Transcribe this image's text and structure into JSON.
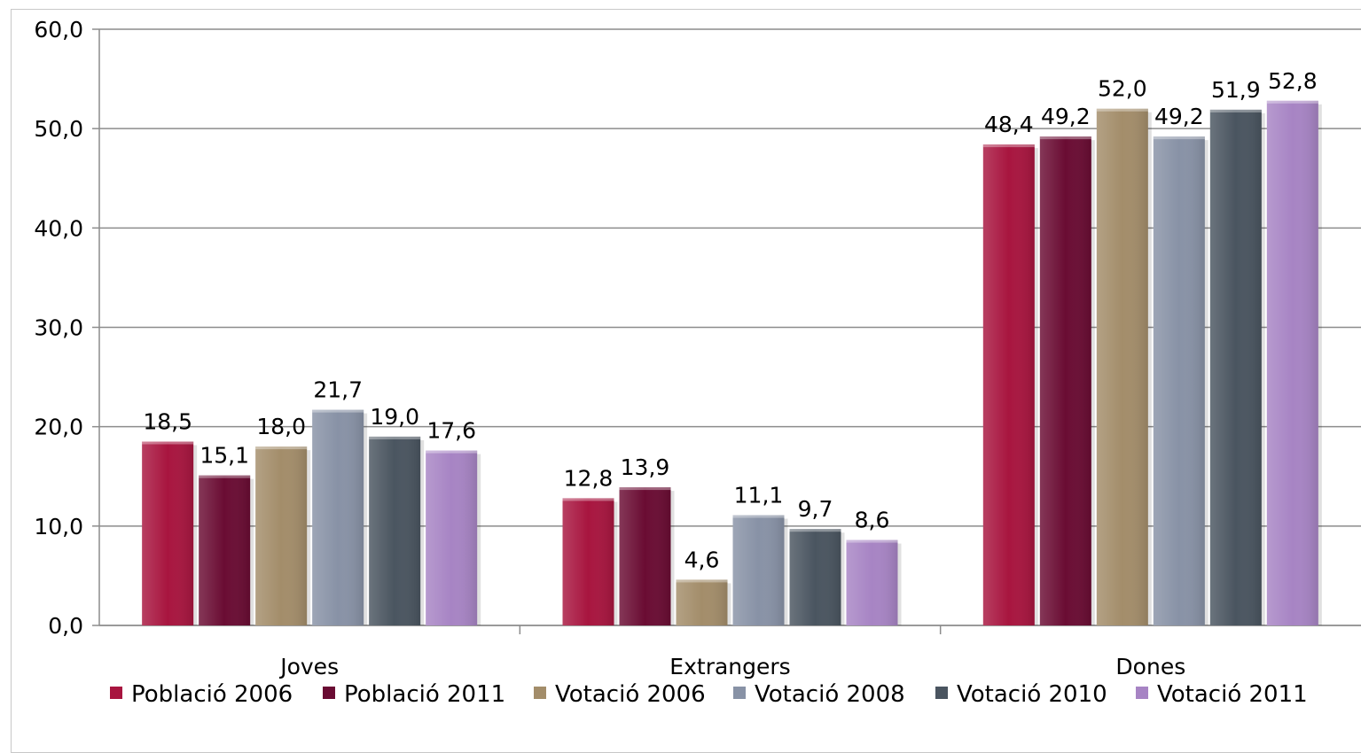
{
  "chart_data": {
    "type": "bar",
    "categories": [
      "Joves",
      "Extrangers",
      "Dones"
    ],
    "series": [
      {
        "name": "Població 2006",
        "color": "#a8153f",
        "values": [
          18.5,
          12.8,
          48.4
        ],
        "labels": [
          "18,5",
          "12,8",
          "48,4"
        ]
      },
      {
        "name": "Població 2011",
        "color": "#6a0c33",
        "values": [
          15.1,
          13.9,
          49.2
        ],
        "labels": [
          "15,1",
          "13,9",
          "49,2"
        ]
      },
      {
        "name": "Votació 2006",
        "color": "#a38d6a",
        "values": [
          18.0,
          4.6,
          52.0
        ],
        "labels": [
          "18,0",
          "4,6",
          "52,0"
        ]
      },
      {
        "name": "Votació 2008",
        "color": "#8892a6",
        "values": [
          21.7,
          11.1,
          49.2
        ],
        "labels": [
          "21,7",
          "11,1",
          "49,2"
        ]
      },
      {
        "name": "Votació 2010",
        "color": "#4a5560",
        "values": [
          19.0,
          9.7,
          51.9
        ],
        "labels": [
          "19,0",
          "9,7",
          "51,9"
        ]
      },
      {
        "name": "Votació 2011",
        "color": "#a784c4",
        "values": [
          17.6,
          8.6,
          52.8
        ],
        "labels": [
          "17,6",
          "8,6",
          "52,8"
        ]
      }
    ],
    "yticks": [
      "0,0",
      "10,0",
      "20,0",
      "30,0",
      "40,0",
      "50,0",
      "60,0"
    ],
    "ylim": [
      0,
      60
    ],
    "grid": true,
    "legend_position": "bottom"
  }
}
